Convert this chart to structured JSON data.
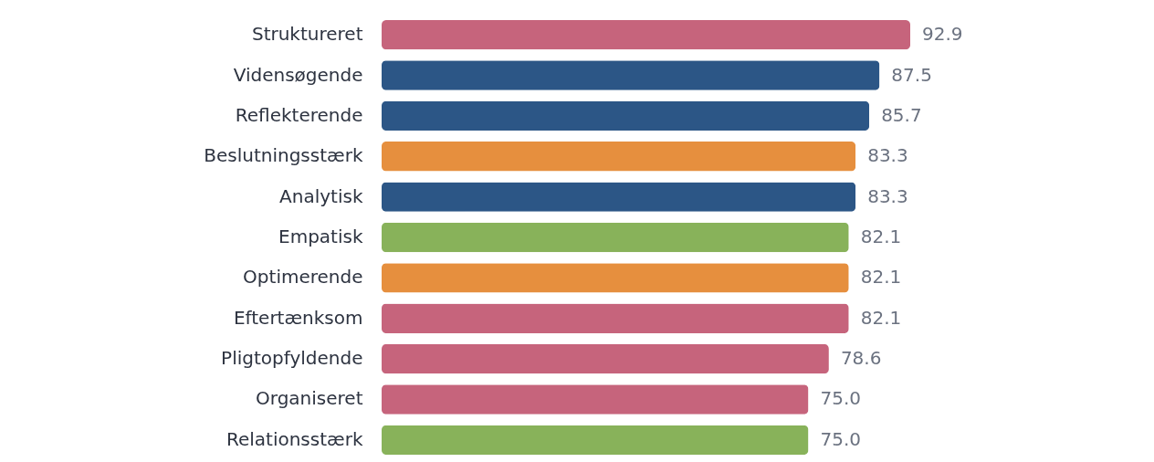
{
  "chart_data": {
    "type": "bar",
    "orientation": "horizontal",
    "value_labels": [
      "92.9",
      "87.5",
      "85.7",
      "83.3",
      "83.3",
      "82.1",
      "82.1",
      "82.1",
      "78.6",
      "75.0",
      "75.0"
    ],
    "categories": [
      "Struktureret",
      "Vidensøgende",
      "Reflekterende",
      "Beslutningsstærk",
      "Analytisk",
      "Empatisk",
      "Optimerende",
      "Eftertænksom",
      "Pligtopfyldende",
      "Organiseret",
      "Relationsstærk"
    ],
    "values": [
      92.9,
      87.5,
      85.7,
      83.3,
      83.3,
      82.1,
      82.1,
      82.1,
      78.6,
      75.0,
      75.0
    ],
    "colors": [
      "#c6647c",
      "#2c5686",
      "#2c5686",
      "#e68f3e",
      "#2c5686",
      "#88b25a",
      "#e68f3e",
      "#c6647c",
      "#c6647c",
      "#c6647c",
      "#88b25a"
    ],
    "xlim": [
      0,
      92.9
    ]
  }
}
